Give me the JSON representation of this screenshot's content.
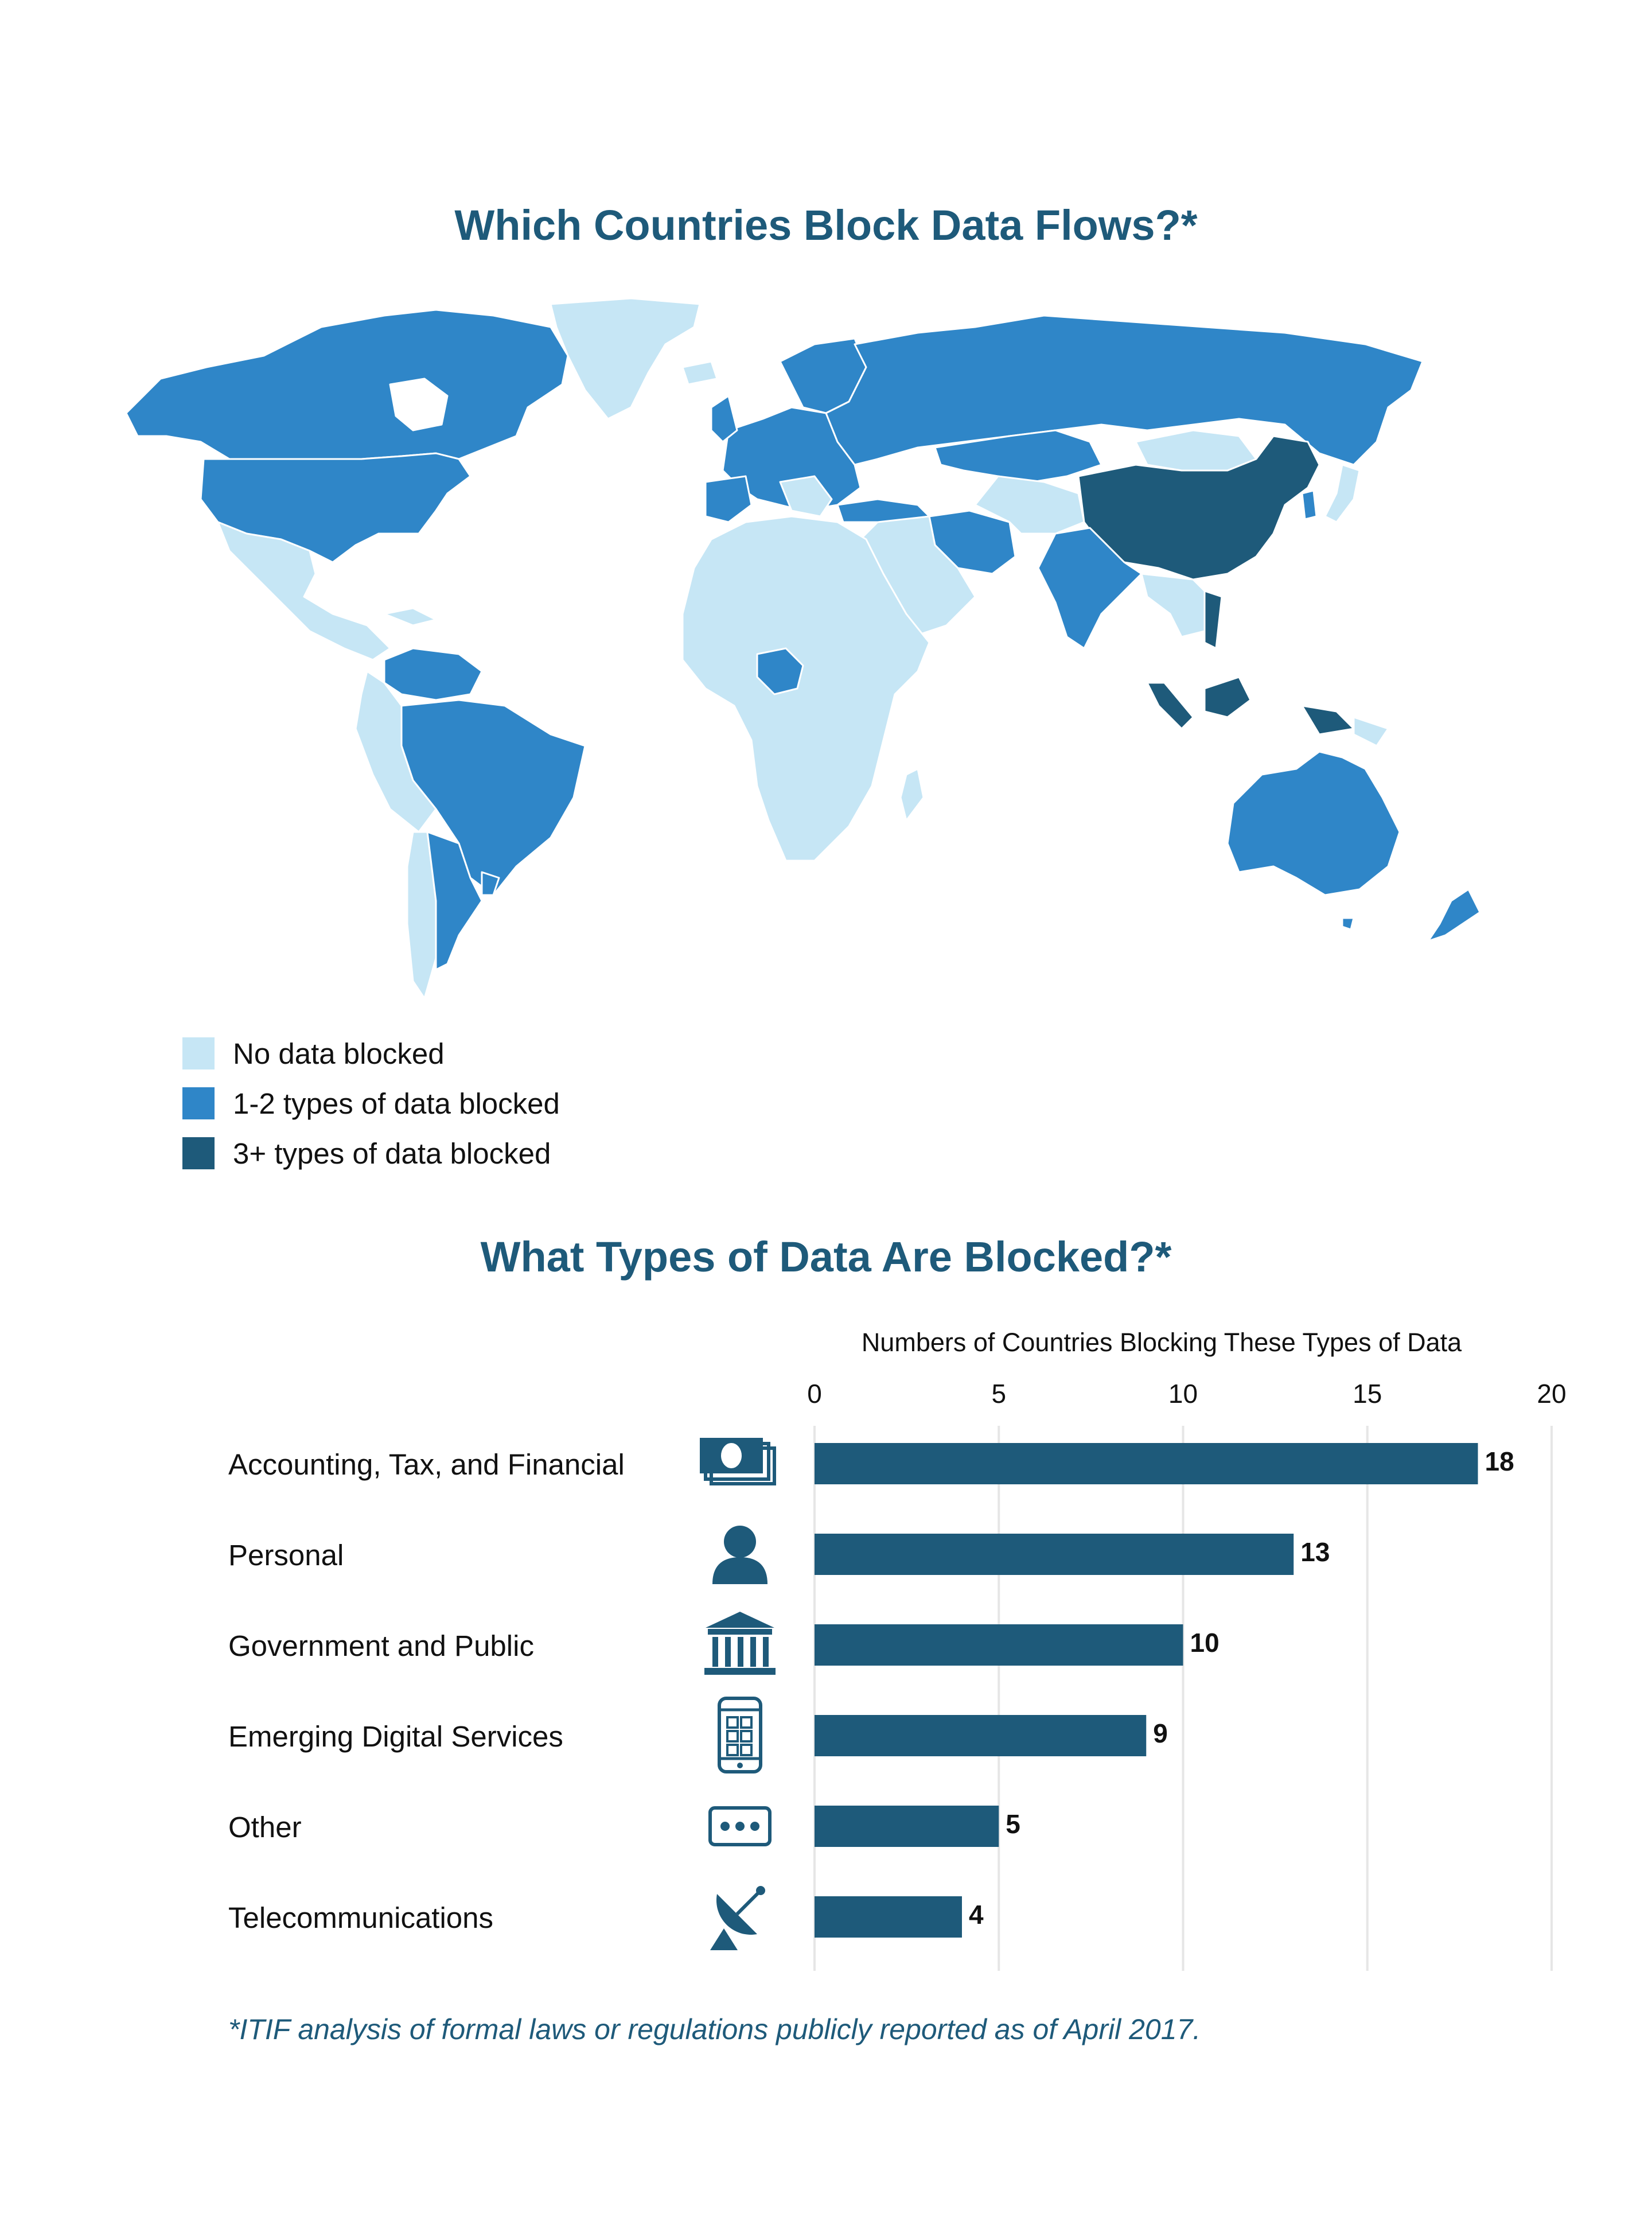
{
  "map": {
    "title": "Which Countries Block Data Flows?*",
    "legend": [
      {
        "label": "No data blocked",
        "color": "#c6e6f5"
      },
      {
        "label": "1-2 types of data blocked",
        "color": "#2f86c8"
      },
      {
        "label": "3+ types of data blocked",
        "color": "#1e5a7a"
      }
    ]
  },
  "chart_data": {
    "type": "bar",
    "orientation": "horizontal",
    "title": "What Types of Data Are Blocked?*",
    "xlabel": "Numbers of Countries Blocking These Types of Data",
    "xlim": [
      0,
      20
    ],
    "xticks": [
      "0",
      "5",
      "10",
      "15",
      "20"
    ],
    "grid": true,
    "categories": [
      "Accounting, Tax, and Financial",
      "Personal",
      "Government and Public",
      "Emerging Digital Services",
      "Other",
      "Telecommunications"
    ],
    "icons": [
      "money-icon",
      "person-icon",
      "government-building-icon",
      "smartphone-icon",
      "more-dots-icon",
      "satellite-dish-icon"
    ],
    "values": [
      18,
      13,
      10,
      9,
      5,
      4
    ],
    "bar_color": "#1e5a7a"
  },
  "footnote": "*ITIF analysis of formal laws or regulations publicly reported as of April 2017."
}
